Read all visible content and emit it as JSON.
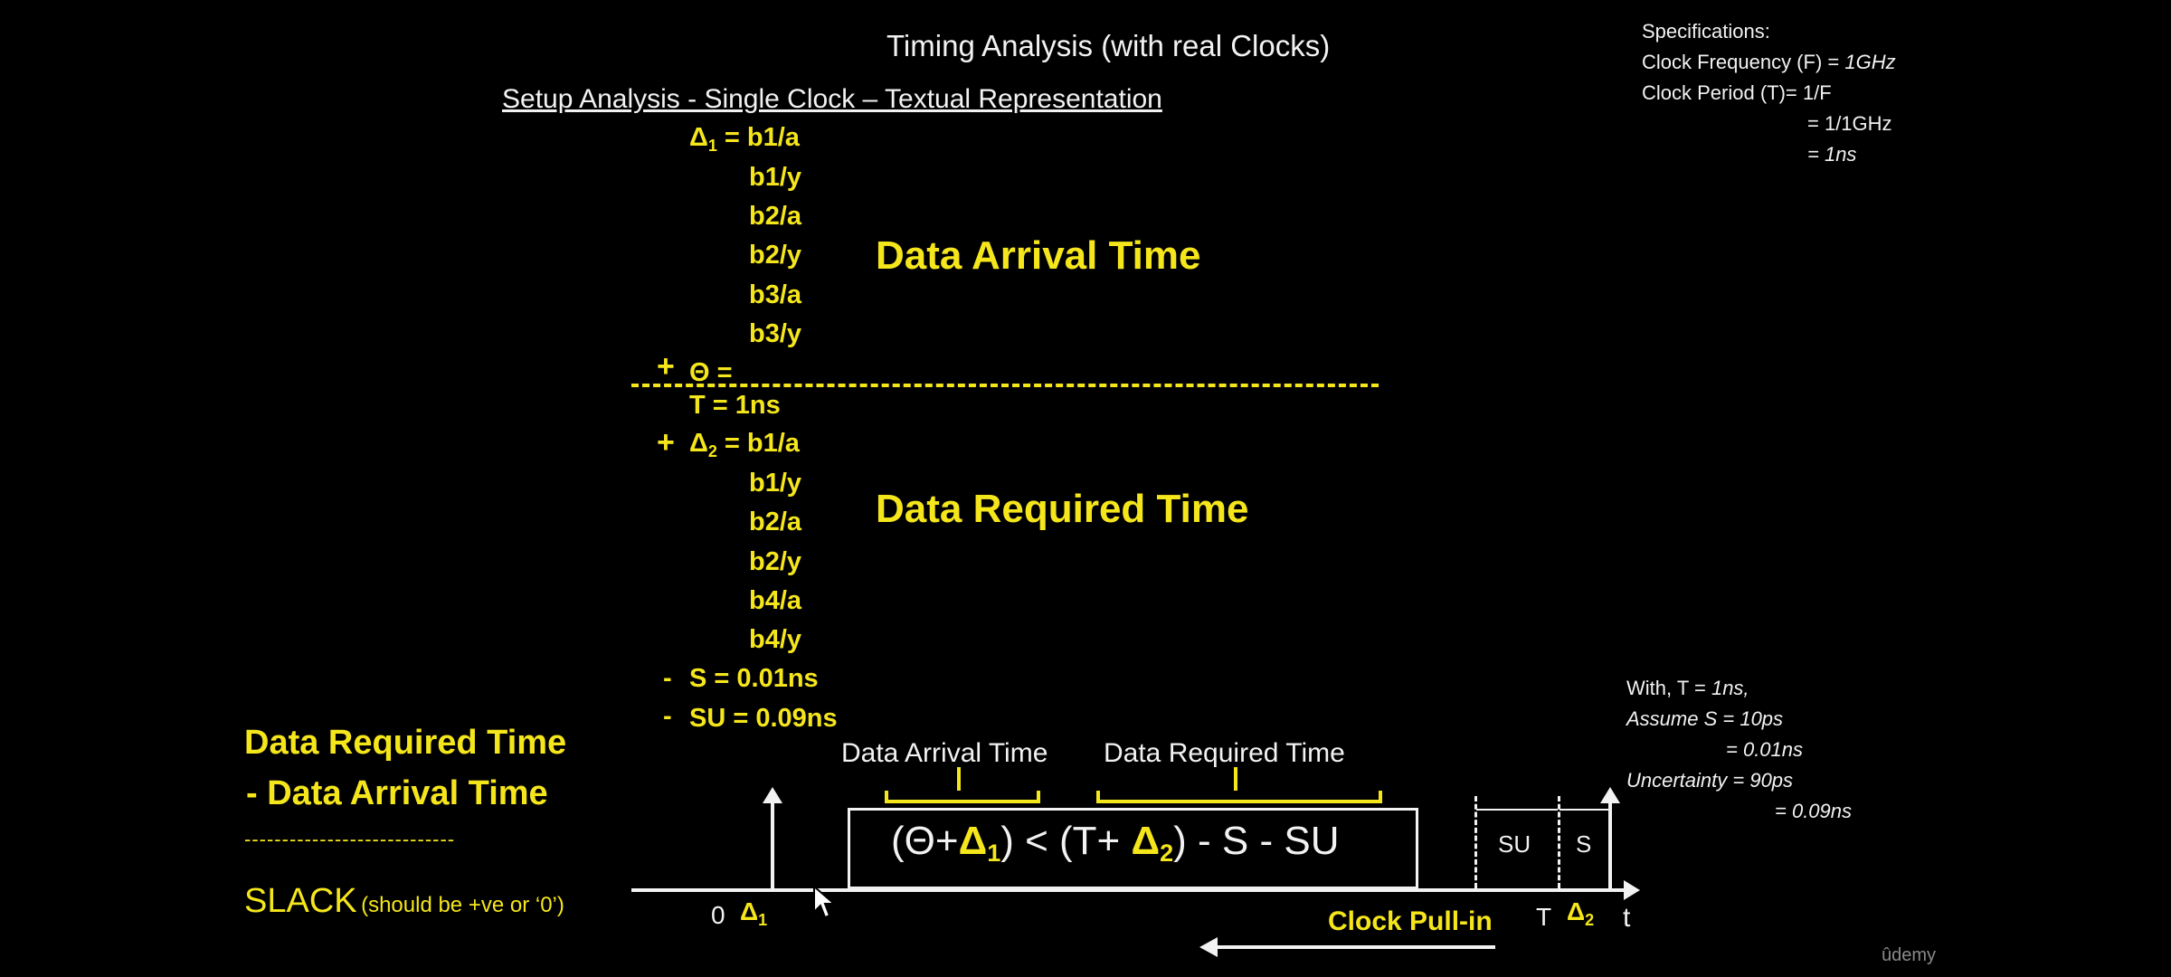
{
  "header": {
    "title": "Timing Analysis (with real Clocks)",
    "subtitle": "Setup Analysis - Single Clock – Textual Representation"
  },
  "specs": {
    "heading": "Specifications:",
    "freq_label": "Clock Frequency (F) = ",
    "freq_value": "1GHz",
    "period_label": "Clock Period (T)= 1/F",
    "period_line2": "= 1/1GHz",
    "period_line3": "= 1ns"
  },
  "arrival": {
    "d1_label": "Δ",
    "d1_sub": "1",
    "d1_eq": " = b1/a",
    "items": [
      "b1/y",
      "b2/a",
      "b2/y",
      "b3/a",
      "b3/y"
    ],
    "theta_plus": "+",
    "theta": "Θ =",
    "label": "Data Arrival Time"
  },
  "required": {
    "t_line": "T  = 1ns",
    "d2_plus": "+",
    "d2_label": "Δ",
    "d2_sub": "2",
    "d2_eq": " = b1/a",
    "items": [
      "b1/y",
      "b2/a",
      "b2/y",
      "b4/a",
      "b4/y"
    ],
    "s_minus": "-",
    "s_line": "S    = 0.01ns",
    "su_minus": "-",
    "su_line": "SU = 0.09ns",
    "label": "Data Required Time"
  },
  "slack": {
    "line1": "Data Required Time",
    "line2": "-   Data Arrival Time",
    "dashes": "----------------------------",
    "word": "SLACK",
    "note": "(should be +ve or ‘0’)"
  },
  "assume": {
    "line1_a": "With, T = ",
    "line1_b": "1ns,",
    "line2": "Assume S = 10ps",
    "line3": "= 0.01ns",
    "line4": "Uncertainty = 90ps",
    "line5": "= 0.09ns"
  },
  "diagram": {
    "arrival_label": "Data Arrival Time",
    "required_label": "Data Required Time",
    "f_open": "(Θ+",
    "f_delta1": "Δ",
    "f_sub1": "1",
    "f_mid": ") < (T+ ",
    "f_delta2": "Δ",
    "f_sub2": "2",
    "f_end": ") - S - SU",
    "zero": "0",
    "d1": "Δ",
    "d1_sub": "1",
    "T": "T",
    "d2": "Δ",
    "d2_sub": "2",
    "t": "t",
    "su": "SU",
    "s": "S",
    "pull_in": "Clock Pull-in"
  },
  "watermark": "ûdemy"
}
